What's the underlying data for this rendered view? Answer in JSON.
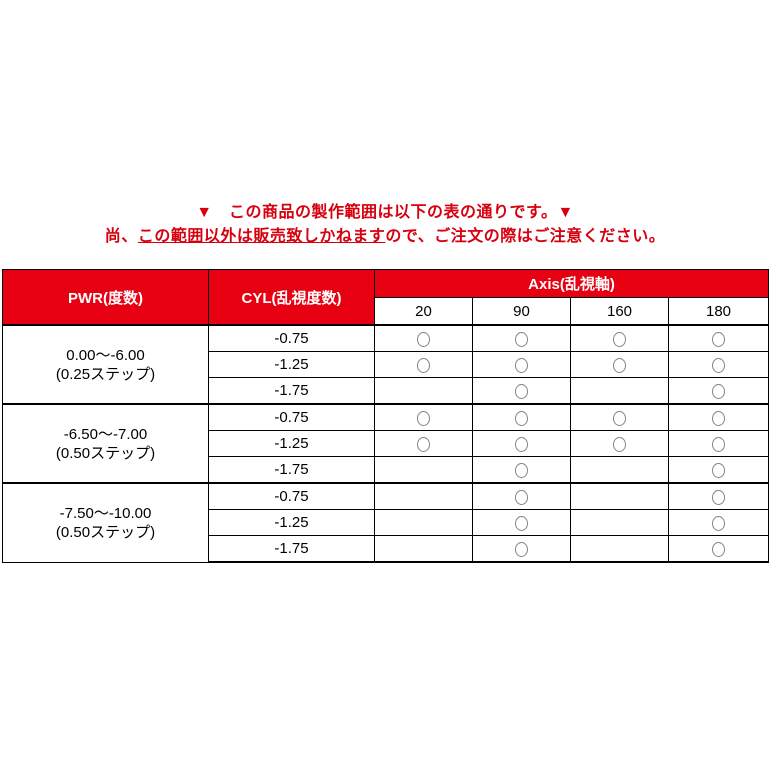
{
  "notice": {
    "line1": "▼　この商品の製作範囲は以下の表の通りです。▼",
    "line2_prefix": "尚、",
    "line2_underlined": "この範囲以外は販売致しかねます",
    "line2_suffix": "ので、ご注文の際はご注意ください。"
  },
  "colors": {
    "accent_red": "#e60012",
    "notice_text_red": "#d7000f",
    "border_black": "#000000",
    "circle_gray": "#848484"
  },
  "table": {
    "headers": {
      "pwr": "PWR(度数)",
      "cyl": "CYL(乱視度数)",
      "axis": "Axis(乱視軸)"
    },
    "axis_values": [
      "20",
      "90",
      "160",
      "180"
    ],
    "available_marker": "circle",
    "groups": [
      {
        "pwr_range": "0.00～-6.00",
        "pwr_step": "(0.25ステップ)",
        "rows": [
          {
            "cyl": "-0.75",
            "axis": [
              true,
              true,
              true,
              true
            ]
          },
          {
            "cyl": "-1.25",
            "axis": [
              true,
              true,
              true,
              true
            ]
          },
          {
            "cyl": "-1.75",
            "axis": [
              false,
              true,
              false,
              true
            ]
          }
        ]
      },
      {
        "pwr_range": "-6.50～-7.00",
        "pwr_step": "(0.50ステップ)",
        "rows": [
          {
            "cyl": "-0.75",
            "axis": [
              true,
              true,
              true,
              true
            ]
          },
          {
            "cyl": "-1.25",
            "axis": [
              true,
              true,
              true,
              true
            ]
          },
          {
            "cyl": "-1.75",
            "axis": [
              false,
              true,
              false,
              true
            ]
          }
        ]
      },
      {
        "pwr_range": "-7.50～-10.00",
        "pwr_step": "(0.50ステップ)",
        "rows": [
          {
            "cyl": "-0.75",
            "axis": [
              false,
              true,
              false,
              true
            ]
          },
          {
            "cyl": "-1.25",
            "axis": [
              false,
              true,
              false,
              true
            ]
          },
          {
            "cyl": "-1.75",
            "axis": [
              false,
              true,
              false,
              true
            ]
          }
        ]
      }
    ]
  }
}
